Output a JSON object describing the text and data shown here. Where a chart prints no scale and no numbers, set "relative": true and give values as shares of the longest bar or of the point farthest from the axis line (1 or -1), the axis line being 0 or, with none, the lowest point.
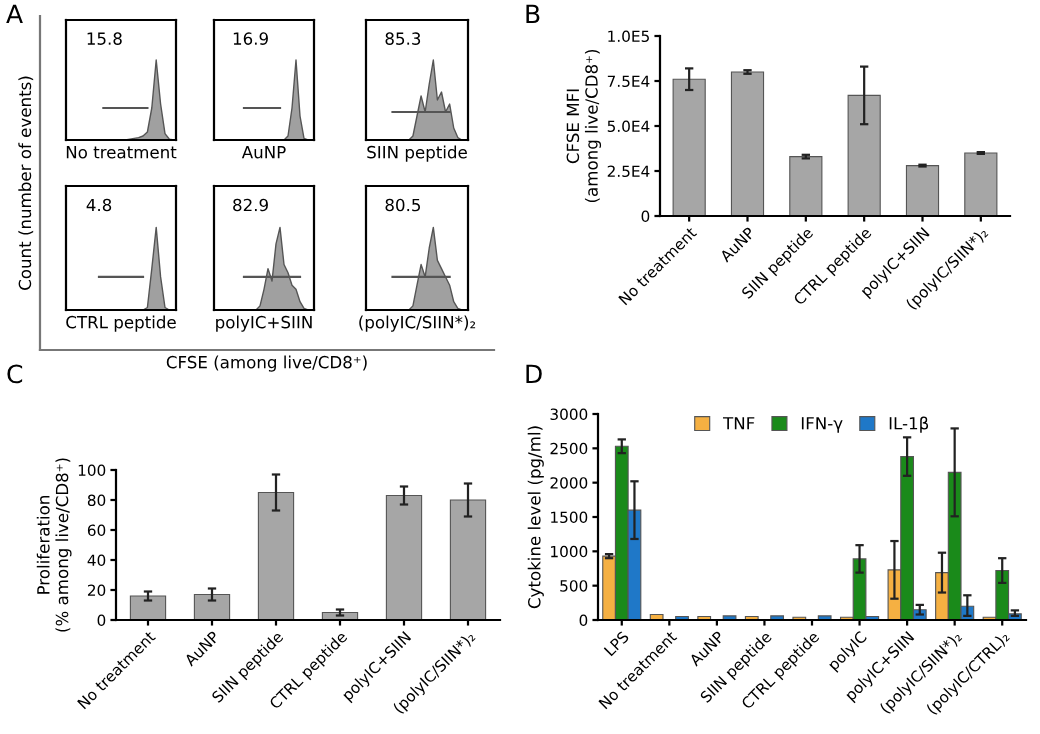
{
  "chart_data": [
    {
      "type": "other",
      "title": "A",
      "xlabel": "CFSE (among live/CD8⁺)",
      "ylabel": "Count (number of events)"
    },
    {
      "type": "area",
      "relative": true,
      "tick_labels": false,
      "xlabel": "No treatment",
      "annotations": [
        "15.8"
      ],
      "categories": [
        null,
        null,
        null,
        null,
        null,
        null,
        null,
        null,
        null,
        null,
        null,
        null,
        null,
        null,
        null,
        null,
        null,
        null,
        null,
        null,
        null,
        null,
        null,
        null,
        null
      ],
      "series": [
        {
          "color": "#a0a0a0",
          "values": [
            0,
            0,
            0,
            0,
            0,
            0,
            0,
            0,
            0,
            0,
            0,
            0,
            0,
            0,
            0.01,
            0.02,
            0.03,
            0.05,
            0.1,
            0.4,
            1,
            0.45,
            0.08,
            0.01,
            0
          ]
        },
        {
          "type": "line",
          "color": "#555555",
          "values": [
            null,
            null,
            null,
            null,
            null,
            null,
            null,
            null,
            0.4,
            0.4,
            0.4,
            0.4,
            0.4,
            0.4,
            0.4,
            0.4,
            0.4,
            0.4,
            0.4,
            null,
            null,
            null,
            null,
            null,
            null
          ]
        }
      ]
    },
    {
      "type": "area",
      "relative": true,
      "tick_labels": false,
      "xlabel": "AuNP",
      "annotations": [
        "16.9"
      ],
      "categories": [
        null,
        null,
        null,
        null,
        null,
        null,
        null,
        null,
        null,
        null,
        null,
        null,
        null,
        null,
        null,
        null,
        null,
        null,
        null,
        null,
        null,
        null,
        null,
        null,
        null
      ],
      "series": [
        {
          "color": "#a0a0a0",
          "values": [
            0,
            0,
            0,
            0,
            0,
            0,
            0,
            0,
            0,
            0,
            0,
            0,
            0,
            0,
            0,
            0,
            0,
            0,
            0.05,
            0.4,
            1,
            0.3,
            0.02,
            0,
            0
          ]
        },
        {
          "type": "line",
          "color": "#555555",
          "values": [
            null,
            null,
            null,
            null,
            null,
            null,
            null,
            0.4,
            0.4,
            0.4,
            0.4,
            0.4,
            0.4,
            0.4,
            0.4,
            0.4,
            0.4,
            null,
            null,
            null,
            null,
            null,
            null,
            null,
            null
          ]
        }
      ]
    },
    {
      "type": "area",
      "relative": true,
      "tick_labels": false,
      "xlabel": "SIIN peptide",
      "annotations": [
        "85.3"
      ],
      "categories": [
        null,
        null,
        null,
        null,
        null,
        null,
        null,
        null,
        null,
        null,
        null,
        null,
        null,
        null,
        null,
        null,
        null,
        null,
        null,
        null,
        null,
        null,
        null,
        null,
        null
      ],
      "series": [
        {
          "color": "#a0a0a0",
          "values": [
            0,
            0,
            0,
            0,
            0,
            0,
            0,
            0,
            0,
            0,
            0,
            0.05,
            0.3,
            0.55,
            0.35,
            0.7,
            1,
            0.5,
            0.6,
            0.35,
            0.45,
            0.15,
            0.03,
            0,
            0
          ]
        },
        {
          "type": "line",
          "color": "#555555",
          "values": [
            null,
            null,
            null,
            null,
            null,
            null,
            0.35,
            0.35,
            0.35,
            0.35,
            0.35,
            0.35,
            0.35,
            0.35,
            0.35,
            0.35,
            0.35,
            0.35,
            0.35,
            0.35,
            0.35,
            null,
            null,
            null,
            null
          ]
        }
      ]
    },
    {
      "type": "area",
      "relative": true,
      "tick_labels": false,
      "xlabel": "CTRL peptide",
      "annotations": [
        "4.8"
      ],
      "categories": [
        null,
        null,
        null,
        null,
        null,
        null,
        null,
        null,
        null,
        null,
        null,
        null,
        null,
        null,
        null,
        null,
        null,
        null,
        null,
        null,
        null,
        null,
        null,
        null,
        null
      ],
      "series": [
        {
          "color": "#a0a0a0",
          "values": [
            0,
            0,
            0,
            0,
            0,
            0,
            0,
            0,
            0,
            0,
            0,
            0,
            0,
            0,
            0,
            0,
            0,
            0,
            0.03,
            0.5,
            1,
            0.4,
            0.03,
            0,
            0
          ]
        },
        {
          "type": "line",
          "color": "#555555",
          "values": [
            null,
            null,
            null,
            null,
            null,
            null,
            null,
            0.4,
            0.4,
            0.4,
            0.4,
            0.4,
            0.4,
            0.4,
            0.4,
            0.4,
            0.4,
            0.4,
            null,
            null,
            null,
            null,
            null,
            null,
            null
          ]
        }
      ]
    },
    {
      "type": "area",
      "relative": true,
      "tick_labels": false,
      "xlabel": "polyIC+SIIN",
      "annotations": [
        "82.9"
      ],
      "categories": [
        null,
        null,
        null,
        null,
        null,
        null,
        null,
        null,
        null,
        null,
        null,
        null,
        null,
        null,
        null,
        null,
        null,
        null,
        null,
        null,
        null,
        null,
        null,
        null,
        null
      ],
      "series": [
        {
          "color": "#a0a0a0",
          "values": [
            0,
            0,
            0,
            0,
            0,
            0,
            0,
            0,
            0,
            0,
            0,
            0.05,
            0.25,
            0.5,
            0.35,
            0.8,
            1,
            0.55,
            0.45,
            0.3,
            0.25,
            0.1,
            0.02,
            0,
            0
          ]
        },
        {
          "type": "line",
          "color": "#555555",
          "values": [
            null,
            null,
            null,
            null,
            null,
            null,
            null,
            0.4,
            0.4,
            0.4,
            0.4,
            0.4,
            0.4,
            0.4,
            0.4,
            0.4,
            0.4,
            0.4,
            0.4,
            0.4,
            0.4,
            0.4,
            null,
            null,
            null
          ]
        }
      ]
    },
    {
      "type": "area",
      "relative": true,
      "tick_labels": false,
      "xlabel": "(polyIC/SIIN*)₂",
      "annotations": [
        "80.5"
      ],
      "categories": [
        null,
        null,
        null,
        null,
        null,
        null,
        null,
        null,
        null,
        null,
        null,
        null,
        null,
        null,
        null,
        null,
        null,
        null,
        null,
        null,
        null,
        null,
        null,
        null,
        null
      ],
      "series": [
        {
          "color": "#a0a0a0",
          "values": [
            0,
            0,
            0,
            0,
            0,
            0,
            0,
            0,
            0,
            0,
            0,
            0.05,
            0.3,
            0.55,
            0.4,
            0.75,
            1,
            0.6,
            0.5,
            0.4,
            0.3,
            0.1,
            0.02,
            0,
            0
          ]
        },
        {
          "type": "line",
          "color": "#555555",
          "values": [
            null,
            null,
            null,
            null,
            null,
            null,
            0.4,
            0.4,
            0.4,
            0.4,
            0.4,
            0.4,
            0.4,
            0.4,
            0.4,
            0.4,
            0.4,
            0.4,
            0.4,
            0.4,
            0.4,
            null,
            null,
            null,
            null
          ]
        }
      ]
    },
    {
      "type": "bar",
      "title": "B",
      "ylabel": "CFSE MFI\n(among live/CD8⁺)",
      "categories": [
        "No treatment",
        "AuNP",
        "SIIN peptide",
        "CTRL peptide",
        "polyIC+SIIN",
        "(polyIC/SIIN*)₂"
      ],
      "series": [
        {
          "color": "#a6a6a6",
          "values": [
            76000,
            80000,
            33000,
            67000,
            28000,
            35000
          ],
          "errors": [
            6000,
            1000,
            1000,
            16000,
            500,
            500
          ]
        }
      ],
      "ylim": [
        0,
        100000
      ],
      "yticks": [
        0,
        {
          "value": 25000,
          "label": "2.5E4"
        },
        {
          "value": 50000,
          "label": "5.0E4"
        },
        {
          "value": 75000,
          "label": "7.5E4"
        },
        {
          "value": 100000,
          "label": "1.0E5"
        }
      ],
      "grid": false,
      "legend": false
    },
    {
      "type": "bar",
      "title": "C",
      "ylabel": "Proliferation\n(% among live/CD8⁺)",
      "categories": [
        "No treatment",
        "AuNP",
        "SIIN peptide",
        "CTRL peptide",
        "polyIC+SIIN",
        "(polyIC/SIIN*)₂"
      ],
      "series": [
        {
          "color": "#a6a6a6",
          "values": [
            16,
            17,
            85,
            5,
            83,
            80
          ],
          "errors": [
            3,
            4,
            12,
            2,
            6,
            11
          ]
        }
      ],
      "ylim": [
        0,
        100
      ],
      "yticks": [
        0,
        20,
        40,
        60,
        80,
        100
      ],
      "grid": false,
      "legend": false
    },
    {
      "type": "bar",
      "title": "D",
      "ylabel": "Cytokine level (pg/ml)",
      "categories": [
        "LPS",
        "No treatment",
        "AuNP",
        "SIIN peptide",
        "CTRL peptide",
        "polyIC",
        "polyIC+SIIN",
        "(polyIC/SIIN*)₂",
        "(polyIC/CTRL)₂"
      ],
      "series": [
        {
          "name": "TNF",
          "color": "#f5b042",
          "values": [
            930,
            80,
            50,
            50,
            40,
            40,
            730,
            690,
            40
          ],
          "errors": [
            30,
            null,
            null,
            null,
            null,
            null,
            420,
            290,
            null
          ]
        },
        {
          "name": "IFN-γ",
          "color": "#1a8a1a",
          "values": [
            2530,
            null,
            null,
            null,
            null,
            890,
            2380,
            2150,
            720
          ],
          "errors": [
            100,
            null,
            null,
            null,
            null,
            200,
            280,
            640,
            180
          ]
        },
        {
          "name": "IL-1β",
          "color": "#1f78c8",
          "values": [
            1600,
            50,
            60,
            60,
            60,
            50,
            150,
            200,
            90
          ],
          "errors": [
            420,
            null,
            null,
            null,
            null,
            null,
            70,
            [
              140,
              160
            ],
            [
              30,
              50
            ]
          ]
        }
      ],
      "ylim": [
        0,
        3000
      ],
      "yticks": [
        0,
        500,
        1000,
        1500,
        2000,
        2500,
        3000
      ],
      "grid": false,
      "legend": "top"
    }
  ]
}
